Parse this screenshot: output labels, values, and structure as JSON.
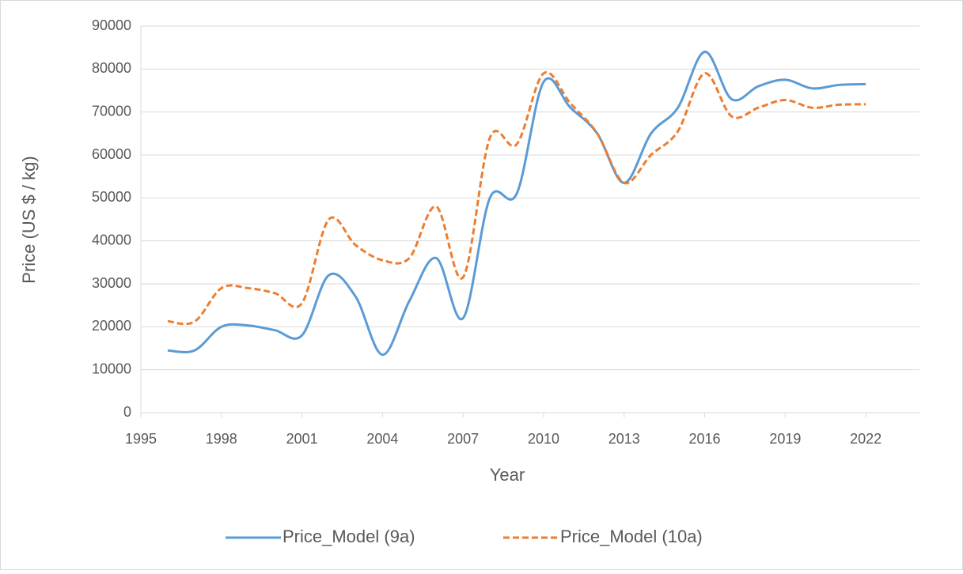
{
  "chart_data": {
    "type": "line",
    "smooth": true,
    "x_label": "Year",
    "y_label": "Price (US $ / kg)",
    "x": [
      1996,
      1997,
      1998,
      1999,
      2000,
      2001,
      2002,
      2003,
      2004,
      2005,
      2006,
      2007,
      2008,
      2009,
      2010,
      2011,
      2012,
      2013,
      2014,
      2015,
      2016,
      2017,
      2018,
      2019,
      2020,
      2021,
      2022
    ],
    "series": [
      {
        "name": "Price_Model (9a)",
        "color": "#5b9bd5",
        "dash": false,
        "values": [
          14500,
          14500,
          20000,
          20300,
          19200,
          18000,
          32000,
          27000,
          13500,
          26000,
          36000,
          22000,
          50000,
          51000,
          77000,
          71000,
          65000,
          53500,
          65000,
          71000,
          84000,
          73000,
          76000,
          77500,
          75500,
          76300,
          76500
        ]
      },
      {
        "name": "Price_Model (10a)",
        "color": "#ed7d31",
        "dash": true,
        "values": [
          21300,
          21200,
          29000,
          29000,
          27800,
          25500,
          45000,
          39000,
          35500,
          36000,
          48000,
          31500,
          64000,
          62500,
          79000,
          72000,
          65000,
          53500,
          60000,
          65500,
          79000,
          69000,
          71000,
          72800,
          71000,
          71700,
          71800
        ]
      }
    ],
    "xlim": [
      1995,
      2024
    ],
    "xticks": [
      1995,
      1998,
      2001,
      2004,
      2007,
      2010,
      2013,
      2016,
      2019,
      2022
    ],
    "ylim": [
      0,
      90000
    ],
    "yticks": [
      0,
      10000,
      20000,
      30000,
      40000,
      50000,
      60000,
      70000,
      80000,
      90000
    ],
    "grid": true,
    "legend": "bottom"
  }
}
